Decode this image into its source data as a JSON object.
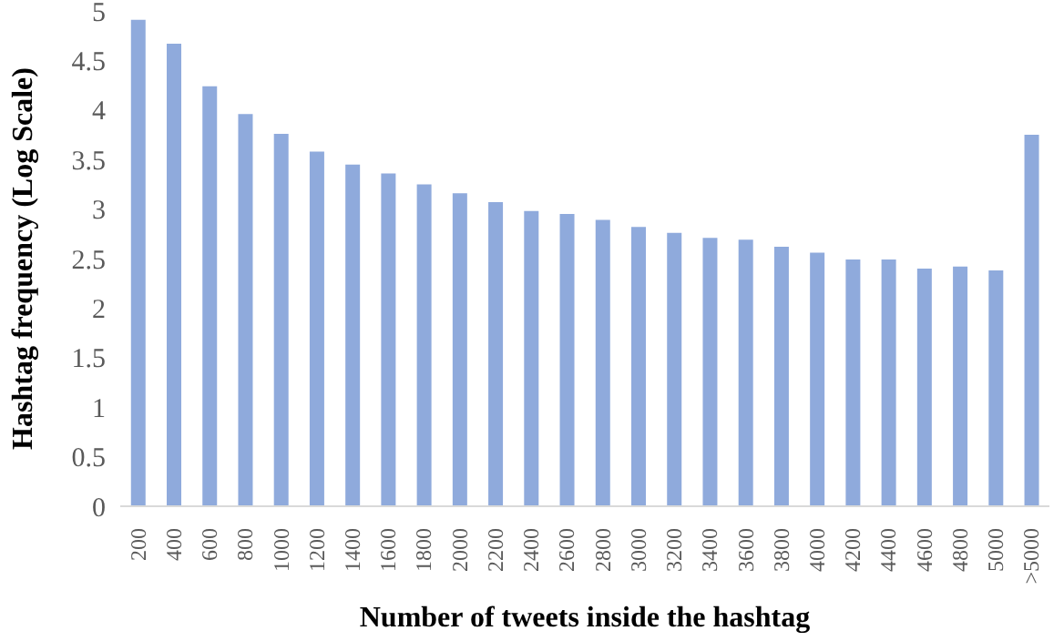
{
  "chart_data": {
    "type": "bar",
    "xlabel": "Number of tweets inside the hashtag",
    "ylabel": "Hashtag frequency (Log Scale)",
    "categories": [
      "200",
      "400",
      "600",
      "800",
      "1000",
      "1200",
      "1400",
      "1600",
      "1800",
      "2000",
      "2200",
      "2400",
      "2600",
      "2800",
      "3000",
      "3200",
      "3400",
      "3600",
      "3800",
      "4000",
      "4200",
      "4400",
      "4600",
      "4800",
      "5000",
      ">5000"
    ],
    "values": [
      4.91,
      4.67,
      4.24,
      3.96,
      3.76,
      3.58,
      3.45,
      3.36,
      3.25,
      3.16,
      3.07,
      2.98,
      2.95,
      2.89,
      2.82,
      2.76,
      2.71,
      2.69,
      2.62,
      2.56,
      2.49,
      2.49,
      2.4,
      2.42,
      2.38,
      3.75
    ],
    "color": "#8faadc",
    "ylim": [
      0,
      5
    ],
    "yticks": [
      0,
      0.5,
      1,
      1.5,
      2,
      2.5,
      3,
      3.5,
      4,
      4.5,
      5
    ],
    "grid": false
  }
}
